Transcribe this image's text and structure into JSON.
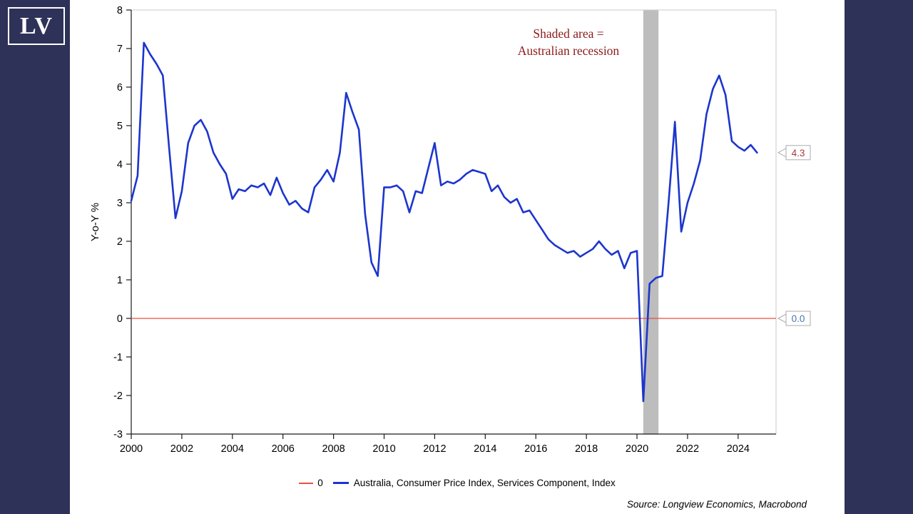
{
  "page": {
    "bg_color": "#2F3258",
    "panel_color": "#FFFFFF"
  },
  "logo": {
    "text": "LV"
  },
  "annotation": {
    "line1": "Shaded area =",
    "line2": "Australian recession",
    "color": "#8C1A1A"
  },
  "end_labels": [
    {
      "text": "4.3",
      "value": 4.3,
      "color": "#A33B3B"
    },
    {
      "text": "0.0",
      "value": 0.0,
      "color": "#4C73B0"
    }
  ],
  "legend": [
    {
      "label": "0",
      "color": "#E8503F"
    },
    {
      "label": "Australia, Consumer Price Index, Services Component, Index",
      "color": "#1C35CE"
    }
  ],
  "source": "Source: Longview Economics, Macrobond",
  "chart_data": {
    "type": "line",
    "title": "",
    "ylabel": "Y-o-Y %",
    "xlabel": "",
    "ylim": [
      -3,
      8
    ],
    "xlim": [
      2000,
      2025.5
    ],
    "y_ticks": [
      8,
      7,
      6,
      5,
      4,
      3,
      2,
      1,
      0,
      -1,
      -2,
      -3
    ],
    "x_ticks": [
      2000,
      2002,
      2004,
      2006,
      2008,
      2010,
      2012,
      2014,
      2016,
      2018,
      2020,
      2022,
      2024
    ],
    "grid": false,
    "zero_line": {
      "value": 0,
      "color": "#E8503F"
    },
    "recession_band": {
      "start": 2020.25,
      "end": 2020.85,
      "color": "#BDBDBD"
    },
    "series": [
      {
        "name": "Australia, Consumer Price Index, Services Component, Index",
        "color": "#1C35CE",
        "x_start": 2000.0,
        "x_step": 0.25,
        "values": [
          3.05,
          3.7,
          7.15,
          6.85,
          6.6,
          6.3,
          4.4,
          2.6,
          3.3,
          4.55,
          5.0,
          5.15,
          4.85,
          4.3,
          4.0,
          3.75,
          3.1,
          3.35,
          3.3,
          3.45,
          3.4,
          3.5,
          3.2,
          3.65,
          3.25,
          2.95,
          3.05,
          2.85,
          2.75,
          3.4,
          3.6,
          3.85,
          3.55,
          4.3,
          5.85,
          5.35,
          4.9,
          2.7,
          1.45,
          1.1,
          3.4,
          3.4,
          3.45,
          3.3,
          2.75,
          3.3,
          3.25,
          3.9,
          4.55,
          3.45,
          3.55,
          3.5,
          3.6,
          3.75,
          3.85,
          3.8,
          3.75,
          3.3,
          3.45,
          3.15,
          3.0,
          3.1,
          2.75,
          2.8,
          2.55,
          2.3,
          2.05,
          1.9,
          1.8,
          1.7,
          1.75,
          1.6,
          1.7,
          1.8,
          2.0,
          1.8,
          1.65,
          1.75,
          1.3,
          1.7,
          1.75,
          -2.15,
          0.9,
          1.05,
          1.1,
          3.0,
          5.1,
          2.25,
          3.0,
          3.5,
          4.1,
          5.3,
          5.95,
          6.3,
          5.8,
          4.6,
          4.45,
          4.35,
          4.5,
          4.3
        ]
      }
    ]
  }
}
